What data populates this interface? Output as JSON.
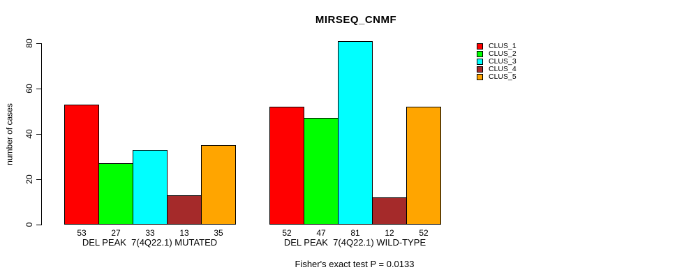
{
  "chart_data": {
    "type": "bar",
    "title": "MIRSEQ_CNMF",
    "ylabel": "number of cases",
    "xlabel": "",
    "ylim": [
      0,
      80
    ],
    "yticks": [
      0,
      20,
      40,
      60,
      80
    ],
    "grid": false,
    "legend_position": "right",
    "categories": [
      "DEL PEAK  7(4Q22.1) MUTATED",
      "DEL PEAK  7(4Q22.1) WILD-TYPE"
    ],
    "series": [
      {
        "name": "CLUS_1",
        "color": "#ff0000",
        "values": [
          53,
          52
        ]
      },
      {
        "name": "CLUS_2",
        "color": "#00ff00",
        "values": [
          27,
          47
        ]
      },
      {
        "name": "CLUS_3",
        "color": "#00ffff",
        "values": [
          33,
          81
        ]
      },
      {
        "name": "CLUS_4",
        "color": "#a52a2a",
        "values": [
          13,
          12
        ]
      },
      {
        "name": "CLUS_5",
        "color": "#ffa500",
        "values": [
          35,
          52
        ]
      }
    ],
    "bar_value_labels_shown": true,
    "annotation": "Fisher's exact test P = 0.0133"
  }
}
